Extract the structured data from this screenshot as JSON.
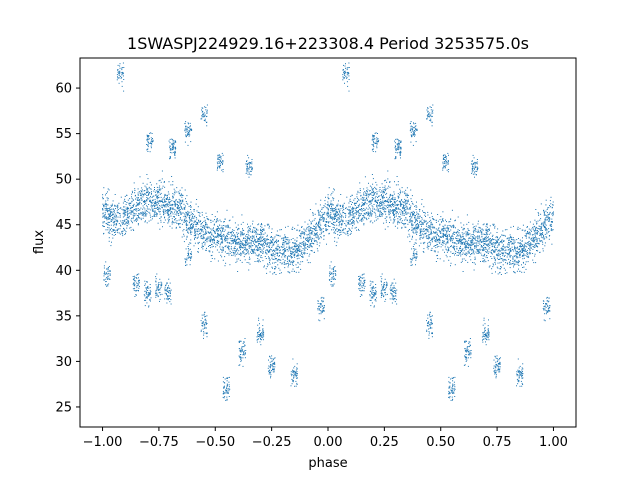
{
  "chart_data": {
    "type": "scatter",
    "title": "1SWASPJ224929.16+223308.4 Period 3253575.0s",
    "xlabel": "phase",
    "ylabel": "flux",
    "xlim": [
      -1.1,
      1.1
    ],
    "ylim": [
      22.8,
      63.3
    ],
    "xticks": [
      -1.0,
      -0.75,
      -0.5,
      -0.25,
      0.0,
      0.25,
      0.5,
      0.75,
      1.0
    ],
    "xtick_labels": [
      "−1.00",
      "−0.75",
      "−0.50",
      "−0.25",
      "0.00",
      "0.25",
      "0.50",
      "0.75",
      "1.00"
    ],
    "yticks": [
      25,
      30,
      35,
      40,
      45,
      50,
      55,
      60
    ],
    "ytick_labels": [
      "25",
      "30",
      "35",
      "40",
      "45",
      "50",
      "55",
      "60"
    ],
    "grid": false,
    "marker_color": "#1f77b4",
    "series": [
      {
        "phase_flux_profile": [
          {
            "phase": 0.0,
            "flux": 46.5
          },
          {
            "phase": 0.05,
            "flux": 45.5
          },
          {
            "phase": 0.1,
            "flux": 46.0
          },
          {
            "phase": 0.15,
            "flux": 47.0
          },
          {
            "phase": 0.2,
            "flux": 47.5
          },
          {
            "phase": 0.25,
            "flux": 47.5
          },
          {
            "phase": 0.3,
            "flux": 47.0
          },
          {
            "phase": 0.35,
            "flux": 46.5
          },
          {
            "phase": 0.4,
            "flux": 45.0
          },
          {
            "phase": 0.45,
            "flux": 44.0
          },
          {
            "phase": 0.5,
            "flux": 44.0
          },
          {
            "phase": 0.55,
            "flux": 43.5
          },
          {
            "phase": 0.6,
            "flux": 43.0
          },
          {
            "phase": 0.65,
            "flux": 43.0
          },
          {
            "phase": 0.7,
            "flux": 43.0
          },
          {
            "phase": 0.75,
            "flux": 42.5
          },
          {
            "phase": 0.8,
            "flux": 42.0
          },
          {
            "phase": 0.85,
            "flux": 42.0
          },
          {
            "phase": 0.9,
            "flux": 43.0
          },
          {
            "phase": 0.95,
            "flux": 44.5
          },
          {
            "phase": 1.0,
            "flux": 46.0
          }
        ],
        "low_clumps": [
          {
            "phase": 0.02,
            "flux": 39.5
          },
          {
            "phase": 0.15,
            "flux": 38.5
          },
          {
            "phase": 0.2,
            "flux": 37.5
          },
          {
            "phase": 0.25,
            "flux": 38.0
          },
          {
            "phase": 0.29,
            "flux": 37.5
          },
          {
            "phase": 0.38,
            "flux": 41.5
          },
          {
            "phase": 0.45,
            "flux": 34.0
          },
          {
            "phase": 0.55,
            "flux": 27.0
          },
          {
            "phase": 0.62,
            "flux": 31.0
          },
          {
            "phase": 0.7,
            "flux": 33.0
          },
          {
            "phase": 0.75,
            "flux": 29.5
          },
          {
            "phase": 0.85,
            "flux": 28.5
          },
          {
            "phase": 0.97,
            "flux": 36.0
          }
        ],
        "high_clumps": [
          {
            "phase": 0.45,
            "flux": 57.0
          },
          {
            "phase": 0.38,
            "flux": 55.5
          },
          {
            "phase": 0.31,
            "flux": 53.5
          },
          {
            "phase": 0.21,
            "flux": 54.0
          },
          {
            "phase": 0.52,
            "flux": 52.0
          },
          {
            "phase": 0.65,
            "flux": 51.5
          },
          {
            "phase": 0.08,
            "flux": 61.5
          }
        ]
      }
    ]
  }
}
